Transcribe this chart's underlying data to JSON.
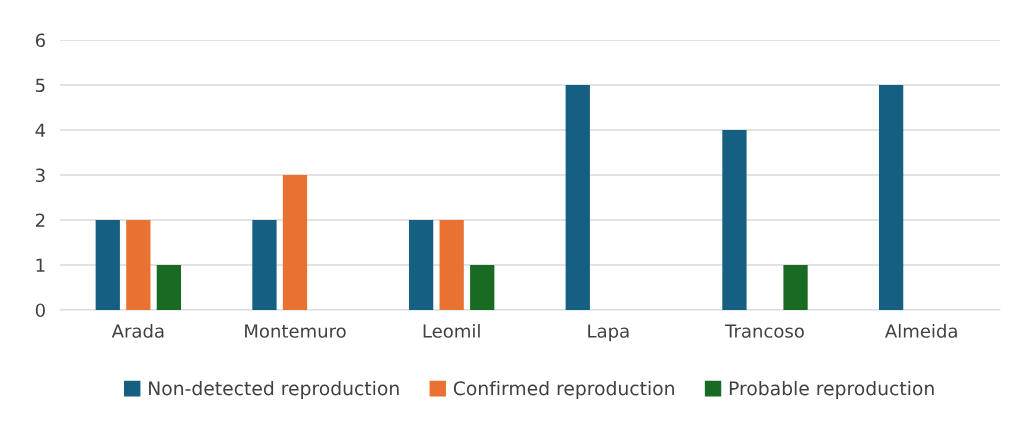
{
  "chart_data": {
    "type": "bar",
    "categories": [
      "Arada",
      "Montemuro",
      "Leomil",
      "Lapa",
      "Trancoso",
      "Almeida"
    ],
    "series": [
      {
        "name": "Non-detected reproduction",
        "color": "#156082",
        "values": [
          2,
          2,
          2,
          5,
          4,
          5
        ]
      },
      {
        "name": "Confirmed reproduction",
        "color": "#e97132",
        "values": [
          2,
          3,
          2,
          null,
          null,
          null
        ]
      },
      {
        "name": "Probable reproduction",
        "color": "#196b24",
        "values": [
          1,
          null,
          1,
          null,
          1,
          null
        ]
      }
    ],
    "ylim": [
      0,
      6
    ],
    "yticks": [
      0,
      1,
      2,
      3,
      4,
      5,
      6
    ],
    "grid": "y",
    "legend": "bottom"
  }
}
